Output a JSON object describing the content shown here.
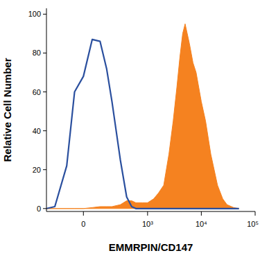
{
  "chart_data": {
    "type": "area",
    "x_label": "EMMRPIN/CD147",
    "y_label": "Relative Cell Number",
    "x": [
      -300,
      -200,
      -100,
      -50,
      0,
      50,
      100,
      150,
      200,
      300,
      400,
      500,
      600,
      800,
      1000,
      1300,
      1600,
      2000,
      2500,
      3000,
      3500,
      4000,
      4500,
      5000,
      6000,
      7000,
      8000,
      10000,
      12000,
      15000,
      20000,
      25000,
      30000,
      40000,
      50000
    ],
    "series": [
      {
        "type": "line",
        "color": "#2a4f9e",
        "values": [
          0,
          1,
          22,
          60,
          68,
          87,
          86,
          72,
          55,
          25,
          6,
          1,
          0,
          0,
          0,
          0,
          0,
          0,
          0,
          0,
          0,
          0,
          0,
          0,
          0,
          0,
          0,
          0,
          0,
          0,
          0,
          0,
          0,
          0,
          0
        ]
      },
      {
        "type": "area",
        "color": "#f58220",
        "values": [
          0,
          0,
          0,
          0,
          0,
          0.5,
          1,
          1,
          1,
          2,
          4,
          4,
          3,
          3,
          3,
          5,
          8,
          12,
          28,
          45,
          62,
          78,
          90,
          95,
          85,
          75,
          70,
          55,
          45,
          28,
          12,
          5,
          2,
          0.5,
          0
        ]
      }
    ],
    "xlim": [
      -300,
      100000
    ],
    "xticks": [
      0,
      {
        "value": 1000,
        "label": "10³"
      },
      {
        "value": 10000,
        "label": "10⁴"
      },
      {
        "value": 100000,
        "label": "10⁵"
      }
    ],
    "ylim": [
      -1.5,
      103
    ],
    "yticks": [
      0,
      20,
      40,
      60,
      80,
      100
    ],
    "grid": false
  }
}
